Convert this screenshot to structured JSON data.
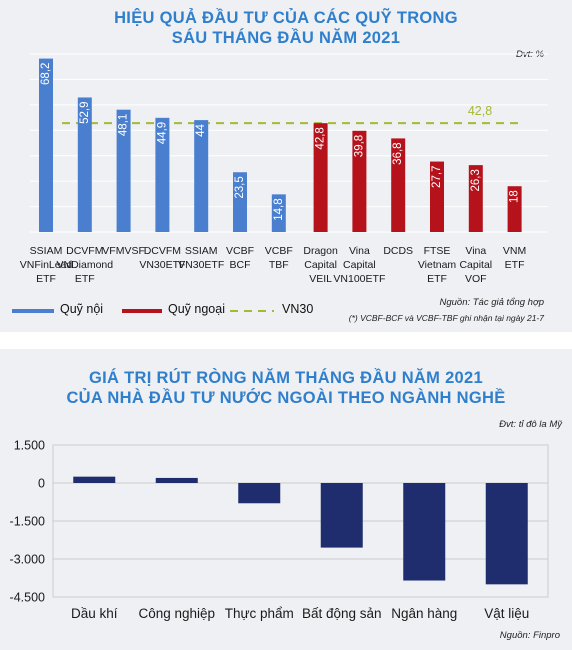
{
  "chart_data": [
    {
      "type": "bar",
      "title": "HIỆU QUẢ ĐẦU TƯ CỦA CÁC QUỸ TRONG SÁU THÁNG ĐẦU NĂM 2021",
      "title_lines": [
        "HIỆU QUẢ ĐẦU TƯ CỦA CÁC QUỸ TRONG",
        "SÁU THÁNG ĐẦU NĂM 2021"
      ],
      "unit": "Đvt: %",
      "categories": [
        [
          "SSIAM",
          "VNFinLead",
          "ETF"
        ],
        [
          "DCVFM",
          "VNDiamond",
          "ETF"
        ],
        [
          "VFMVSF"
        ],
        [
          "DCVFM",
          "VN30ETF"
        ],
        [
          "SSIAM",
          "VN30ETF"
        ],
        [
          "VCBF",
          "BCF"
        ],
        [
          "VCBF",
          "TBF"
        ],
        [
          "Dragon",
          "Capital",
          "VEIL"
        ],
        [
          "Vina",
          "Capital",
          "VN100ETF"
        ],
        [
          "DCDS"
        ],
        [
          "FTSE",
          "Vietnam",
          "ETF"
        ],
        [
          "Vina",
          "Capital",
          "VOF"
        ],
        [
          "VNM",
          "ETF"
        ]
      ],
      "values": [
        68.2,
        52.9,
        48.1,
        44.9,
        44,
        23.5,
        14.8,
        42.8,
        39.8,
        36.8,
        27.7,
        26.3,
        18
      ],
      "value_labels": [
        "68,2",
        "52,9",
        "48,1",
        "44,9",
        "44",
        "23,5",
        "14,8",
        "42,8",
        "39,8",
        "36,8",
        "27,7",
        "26,3",
        "18"
      ],
      "groups": [
        "domestic",
        "domestic",
        "domestic",
        "domestic",
        "domestic",
        "domestic",
        "domestic",
        "foreign",
        "foreign",
        "foreign",
        "foreign",
        "foreign",
        "foreign"
      ],
      "reference_line": {
        "name": "VN30",
        "value": 42.8,
        "label": "42,8"
      },
      "legend": [
        {
          "label": "Quỹ nội",
          "color": "#4a7fd0"
        },
        {
          "label": "Quỹ ngoại",
          "color": "#b5121b"
        },
        {
          "label": "VN30",
          "color": "#a8b832"
        }
      ],
      "ylim": [
        0,
        70
      ],
      "grid": true,
      "source": "Nguồn: Tác giả tổng hợp",
      "footnote": "(*) VCBF-BCF và VCBF-TBF ghi nhận tại ngày 21-7",
      "colors": {
        "domestic": "#4a7fd0",
        "foreign": "#b5121b",
        "reference": "#a8b832",
        "title": "#2f7fcc"
      }
    },
    {
      "type": "bar",
      "title": "GIÁ TRỊ RÚT RÒNG NĂM THÁNG ĐẦU NĂM 2021 CỦA NHÀ ĐẦU TƯ NƯỚC NGOÀI THEO NGÀNH NGHỀ",
      "title_lines": [
        "GIÁ TRỊ RÚT RÒNG NĂM THÁNG ĐẦU NĂM 2021",
        "CỦA NHÀ ĐẦU TƯ NƯỚC NGOÀI THEO NGÀNH NGHỀ"
      ],
      "unit": "Đvt: tỉ đô la Mỹ",
      "categories": [
        "Dầu khí",
        "Công nghiệp",
        "Thực phẩm",
        "Bất động sản",
        "Ngân hàng",
        "Vật liệu"
      ],
      "values": [
        250,
        200,
        -800,
        -2550,
        -3850,
        -4000
      ],
      "yticks": [
        1500,
        0,
        -1500,
        -3000,
        -4500
      ],
      "ytick_labels": [
        "1.500",
        "0",
        "-1.500",
        "-3.000",
        "-4.500"
      ],
      "ylim": [
        -4500,
        1500
      ],
      "grid": true,
      "source": "Nguồn: Finpro",
      "colors": {
        "bar": "#1f2d6e",
        "title": "#2f7fcc"
      }
    }
  ]
}
